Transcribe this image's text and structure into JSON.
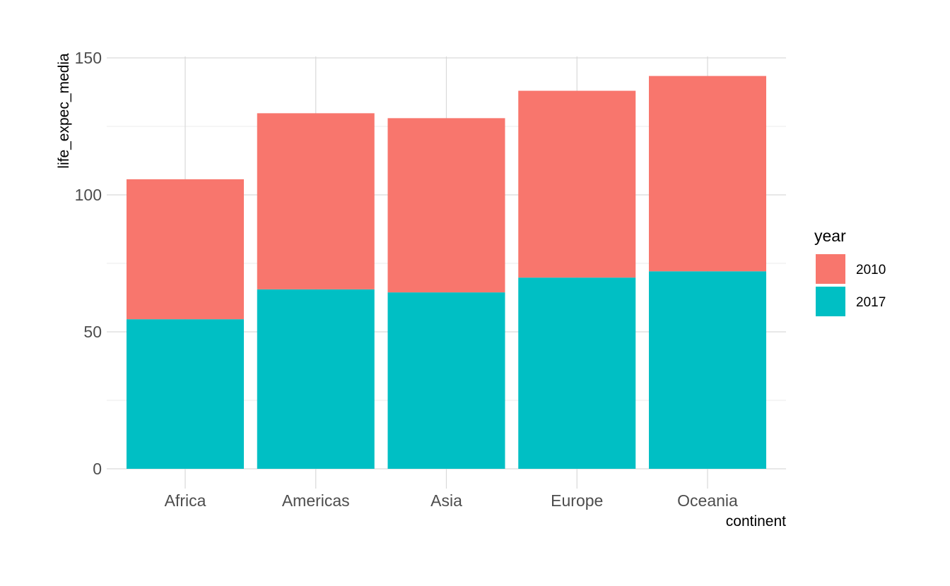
{
  "chart_data": {
    "type": "bar",
    "stacked": true,
    "categories": [
      "Africa",
      "Americas",
      "Asia",
      "Europe",
      "Oceania"
    ],
    "series": [
      {
        "name": "2017",
        "color": "#00BFC4",
        "values": [
          54.6,
          65.5,
          64.4,
          69.8,
          72.1
        ]
      },
      {
        "name": "2010",
        "color": "#F8766D",
        "values": [
          51.1,
          64.3,
          63.6,
          68.2,
          71.3
        ]
      }
    ],
    "xlabel": "continent",
    "ylabel": "life_expec_media",
    "ylim": [
      0,
      150
    ],
    "yticks": [
      0,
      50,
      100,
      150
    ],
    "grid": true,
    "legend": {
      "title": "year",
      "position": "right",
      "entries": [
        {
          "label": "2010",
          "color": "#F8766D"
        },
        {
          "label": "2017",
          "color": "#00BFC4"
        }
      ]
    }
  }
}
